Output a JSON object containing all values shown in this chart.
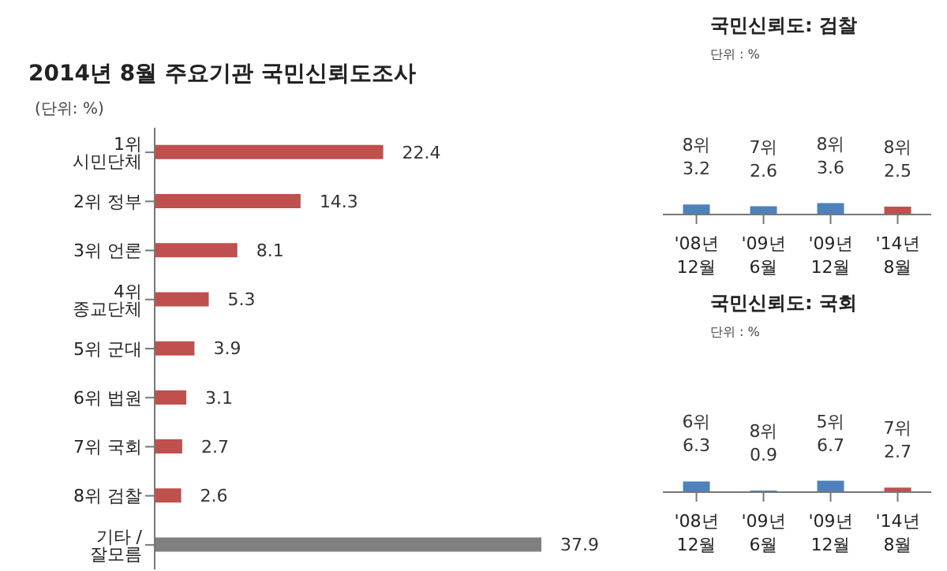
{
  "chart_data": [
    {
      "type": "bar",
      "title": "2014년 8월 주요기관 국민신뢰도조사",
      "subtitle": "(단위: %)",
      "orientation": "horizontal",
      "categories": [
        "1위 시민단체",
        "2위 정부",
        "3위 언론",
        "4위 종교단체",
        "5위 군대",
        "6위 법원",
        "7위 국회",
        "8위 검찰",
        "기타 / 잘모름"
      ],
      "values": [
        22.4,
        14.3,
        8.1,
        5.3,
        3.9,
        3.1,
        2.7,
        2.6,
        37.9
      ],
      "colors": [
        "#c0504d",
        "#c0504d",
        "#c0504d",
        "#c0504d",
        "#c0504d",
        "#c0504d",
        "#c0504d",
        "#c0504d",
        "#7f7f7f"
      ],
      "data_labels": true,
      "tick_labels": "y",
      "legend": false,
      "grid": false
    },
    {
      "type": "bar",
      "title": "국민신뢰도: 검찰",
      "subtitle": "단위 : %",
      "categories": [
        "'08년 12월",
        "'09년 6월",
        "'09년 12월",
        "'14년 8월"
      ],
      "values": [
        3.2,
        2.6,
        3.6,
        2.5
      ],
      "colors": [
        "#4f81bd",
        "#4f81bd",
        "#4f81bd",
        "#c0504d"
      ],
      "value_labels": [
        "8위 3.2",
        "7위 2.6",
        "8위 3.6",
        "8위 2.5"
      ],
      "tick_labels": "x",
      "legend": false,
      "grid": false
    },
    {
      "type": "bar",
      "title": "국민신뢰도: 국회",
      "subtitle": "단위 : %",
      "categories": [
        "'08년 12월",
        "'09년 6월",
        "'09년 12월",
        "'14년 8월"
      ],
      "values": [
        6.3,
        0.9,
        6.7,
        2.7
      ],
      "colors": [
        "#4f81bd",
        "#4f81bd",
        "#4f81bd",
        "#c0504d"
      ],
      "value_labels": [
        "6위 6.3",
        "8위 0.9",
        "5위 6.7",
        "7위 2.7"
      ],
      "tick_labels": "x",
      "legend": false,
      "grid": false
    }
  ]
}
